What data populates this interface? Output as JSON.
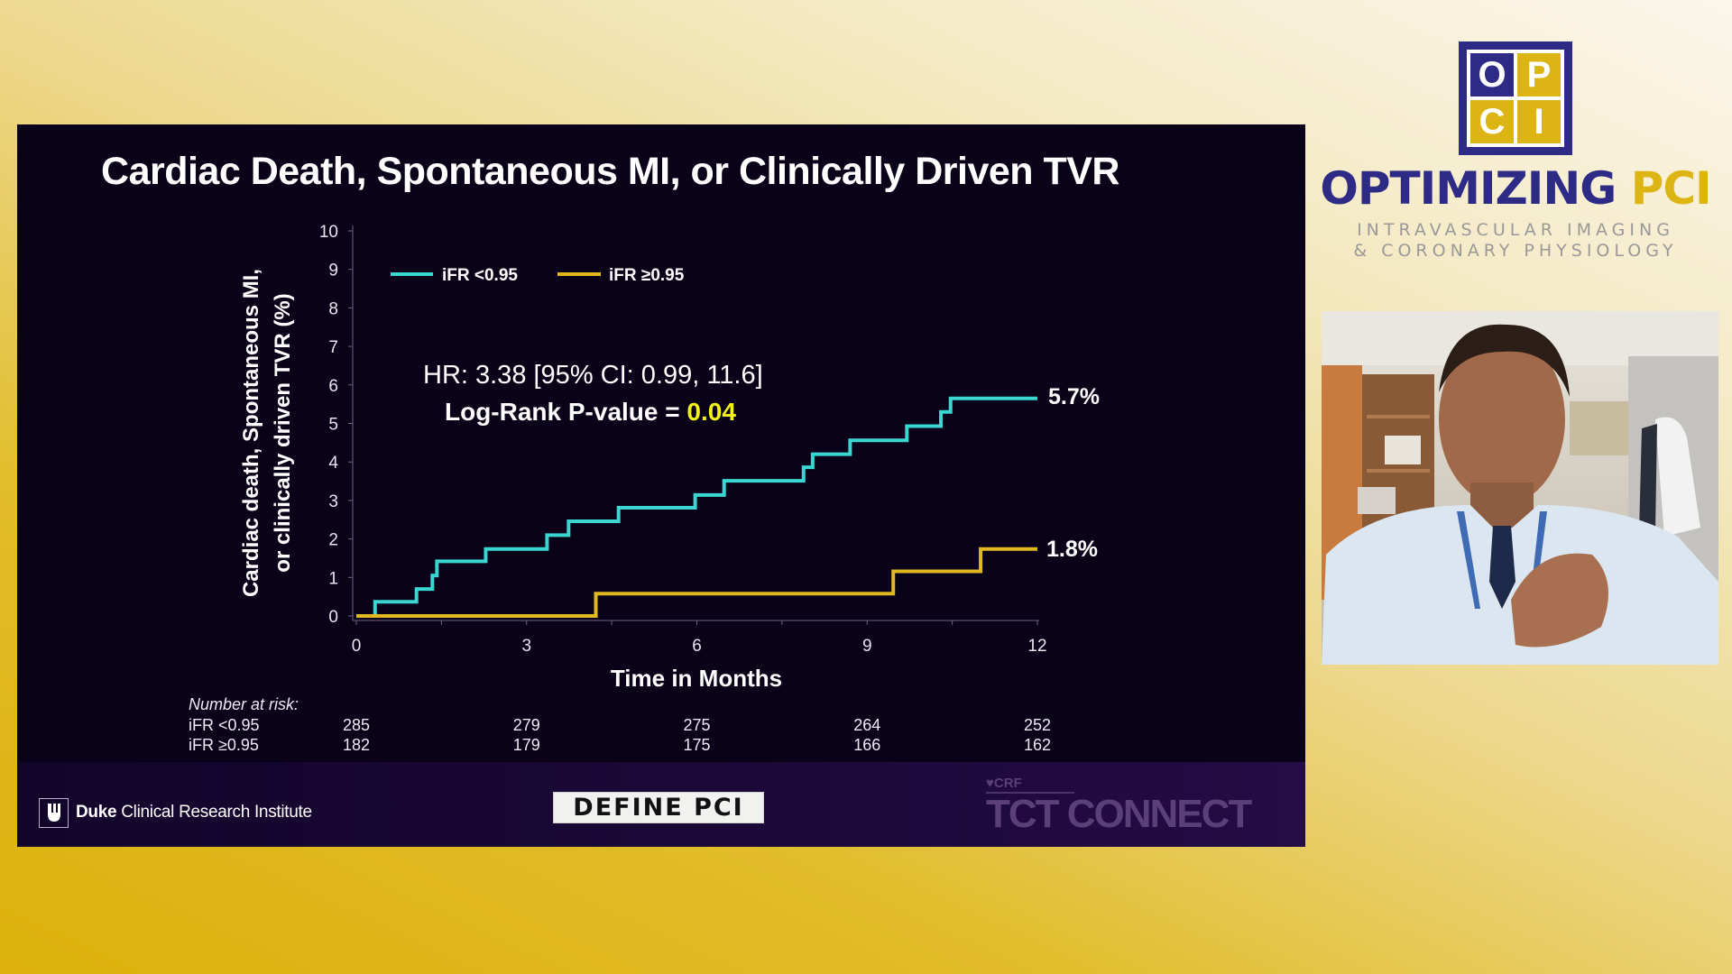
{
  "slide": {
    "title": "Cardiac Death, Spontaneous MI, or Clinically Driven TVR",
    "hr_text": "HR: 3.38 [95% CI: 0.99, 11.6]",
    "pvalue_label": "Log-Rank P-value = ",
    "pvalue": "0.04",
    "pvalue_color": "#f2f21a",
    "risk_table": {
      "title": "Number at risk:",
      "rows": [
        {
          "label": "iFR <0.95",
          "values": [
            "285",
            "279",
            "275",
            "264",
            "252"
          ]
        },
        {
          "label": "iFR ≥0.95",
          "values": [
            "182",
            "179",
            "175",
            "166",
            "162"
          ]
        }
      ]
    },
    "footer": {
      "duke_bold": "Duke",
      "duke_rest": " Clinical Research Institute",
      "define_logo": "DEFINE PCI",
      "tct_small": "CRF",
      "tct_main": "TCT CONNECT"
    }
  },
  "chart_data": {
    "type": "line",
    "title": "Cardiac Death, Spontaneous MI, or Clinically Driven TVR",
    "xlabel": "Time in Months",
    "ylabel_lines": [
      "Cardiac death, Spontaneous MI,",
      "or clinically driven TVR (%)"
    ],
    "xlim": [
      0,
      12
    ],
    "ylim": [
      0,
      10
    ],
    "xticks": [
      "0",
      "3",
      "6",
      "9",
      "12"
    ],
    "yticks": [
      "0",
      "1",
      "2",
      "3",
      "4",
      "5",
      "6",
      "7",
      "8",
      "9",
      "10"
    ],
    "grid": false,
    "legend_position": "top-left",
    "series": [
      {
        "name": "iFR <0.95",
        "color": "#3ad6d2",
        "end_label": "5.7%",
        "steps": [
          [
            0,
            0
          ],
          [
            0.33,
            0.37
          ],
          [
            1.06,
            0.7
          ],
          [
            1.34,
            1.05
          ],
          [
            1.42,
            1.42
          ],
          [
            2.28,
            1.74
          ],
          [
            3.36,
            2.1
          ],
          [
            3.74,
            2.46
          ],
          [
            4.62,
            2.81
          ],
          [
            5.97,
            3.14
          ],
          [
            6.48,
            3.51
          ],
          [
            7.88,
            3.86
          ],
          [
            8.04,
            4.2
          ],
          [
            8.7,
            4.56
          ],
          [
            9.7,
            4.93
          ],
          [
            10.3,
            5.3
          ],
          [
            10.47,
            5.65
          ],
          [
            12,
            5.65
          ]
        ]
      },
      {
        "name": "iFR ≥0.95",
        "color": "#e0b820",
        "end_label": "1.8%",
        "steps": [
          [
            0,
            0
          ],
          [
            4.22,
            0.58
          ],
          [
            9.46,
            1.16
          ],
          [
            11.0,
            1.74
          ],
          [
            12,
            1.74
          ]
        ]
      }
    ]
  },
  "branding": {
    "logo_letters": [
      "O",
      "P",
      "C",
      "I"
    ],
    "brand_main": "OPTIMIZING ",
    "brand_accent": "PCI",
    "tagline1": "INTRAVASCULAR IMAGING",
    "tagline2": "& CORONARY PHYSIOLOGY",
    "navy": "#2e2b86",
    "gold": "#dcb414"
  },
  "video": {
    "content": "speaker-webcam"
  }
}
